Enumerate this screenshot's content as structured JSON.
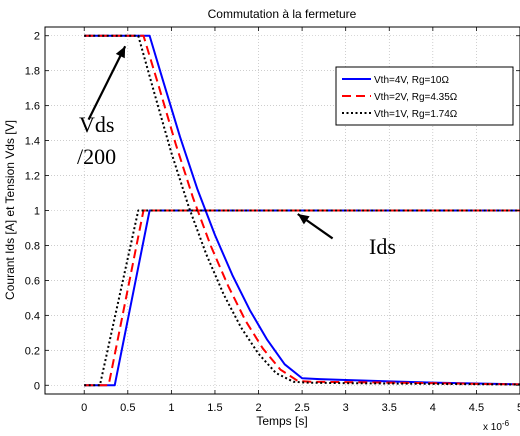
{
  "chart_data": {
    "type": "line",
    "title": "Commutation à la fermeture",
    "xlabel": "Temps [s]",
    "ylabel": "Courant Ids [A] et Tension Vds [V]",
    "x_multiplier": "x 10",
    "x_exponent": "-6",
    "xlim": [
      -0.45,
      5.0
    ],
    "ylim": [
      -0.05,
      2.05
    ],
    "xticks": [
      0,
      0.5,
      1,
      1.5,
      2,
      2.5,
      3,
      3.5,
      4,
      4.5,
      5
    ],
    "xtick_labels": [
      "0",
      "0.5",
      "1",
      "1.5",
      "2",
      "2.5",
      "3",
      "3.5",
      "4",
      "4.5",
      "5"
    ],
    "yticks": [
      0,
      0.2,
      0.4,
      0.6,
      0.8,
      1,
      1.2,
      1.4,
      1.6,
      1.8,
      2
    ],
    "ytick_labels": [
      "0",
      "0.2",
      "0.4",
      "0.6",
      "0.8",
      "1",
      "1.2",
      "1.4",
      "1.6",
      "1.8",
      "2"
    ],
    "grid": true,
    "legend_position": "top-right",
    "series": [
      {
        "name": "Vth=4V, Rg=10Ω",
        "color": "#0000ff",
        "dash": "solid",
        "vds": {
          "x": [
            0,
            0.55,
            0.75,
            0.9,
            1.1,
            1.3,
            1.5,
            1.7,
            1.9,
            2.1,
            2.3,
            2.5,
            2.7,
            3.0,
            3.5,
            4.0,
            4.5,
            5.0
          ],
          "y": [
            2,
            2,
            2,
            1.75,
            1.42,
            1.12,
            0.86,
            0.63,
            0.43,
            0.26,
            0.12,
            0.04,
            0.035,
            0.03,
            0.022,
            0.015,
            0.01,
            0.005
          ]
        },
        "ids": {
          "x": [
            0,
            0.35,
            0.75,
            1.0,
            5.0
          ],
          "y": [
            0,
            0,
            1,
            1,
            1
          ]
        }
      },
      {
        "name": "Vth=2V, Rg=4.35Ω",
        "color": "#ff0000",
        "dash": "dashed",
        "vds": {
          "x": [
            0,
            0.5,
            0.68,
            0.85,
            1.05,
            1.25,
            1.45,
            1.65,
            1.85,
            2.05,
            2.25,
            2.45,
            2.6,
            3.0,
            3.5,
            4.0,
            4.5,
            5.0
          ],
          "y": [
            2,
            2,
            2,
            1.72,
            1.38,
            1.07,
            0.8,
            0.57,
            0.37,
            0.21,
            0.09,
            0.025,
            0.02,
            0.018,
            0.015,
            0.012,
            0.008,
            0.005
          ]
        },
        "ids": {
          "x": [
            0,
            0.28,
            0.68,
            1.0,
            5.0
          ],
          "y": [
            0,
            0,
            1,
            1,
            1
          ]
        }
      },
      {
        "name": "Vth=1V, Rg=1.74Ω",
        "color": "#000000",
        "dash": "dotted",
        "vds": {
          "x": [
            0,
            0.45,
            0.62,
            0.8,
            1.0,
            1.2,
            1.4,
            1.6,
            1.8,
            2.0,
            2.2,
            2.4,
            2.55,
            3.0,
            3.5,
            4.0,
            4.5,
            5.0
          ],
          "y": [
            2,
            2,
            2,
            1.68,
            1.33,
            1.02,
            0.75,
            0.52,
            0.33,
            0.18,
            0.07,
            0.02,
            0.015,
            0.012,
            0.01,
            0.008,
            0.006,
            0.004
          ]
        },
        "ids": {
          "x": [
            0,
            0.18,
            0.62,
            1.0,
            5.0
          ],
          "y": [
            0,
            0,
            1,
            1,
            1
          ]
        }
      }
    ],
    "annotations": [
      {
        "text": "Vds",
        "line2": "/200",
        "arrow_from": [
          0.05,
          1.52
        ],
        "arrow_to": [
          0.47,
          1.94
        ]
      },
      {
        "text": "Ids",
        "arrow_from": [
          2.85,
          0.84
        ],
        "arrow_to": [
          2.45,
          0.98
        ]
      }
    ]
  }
}
